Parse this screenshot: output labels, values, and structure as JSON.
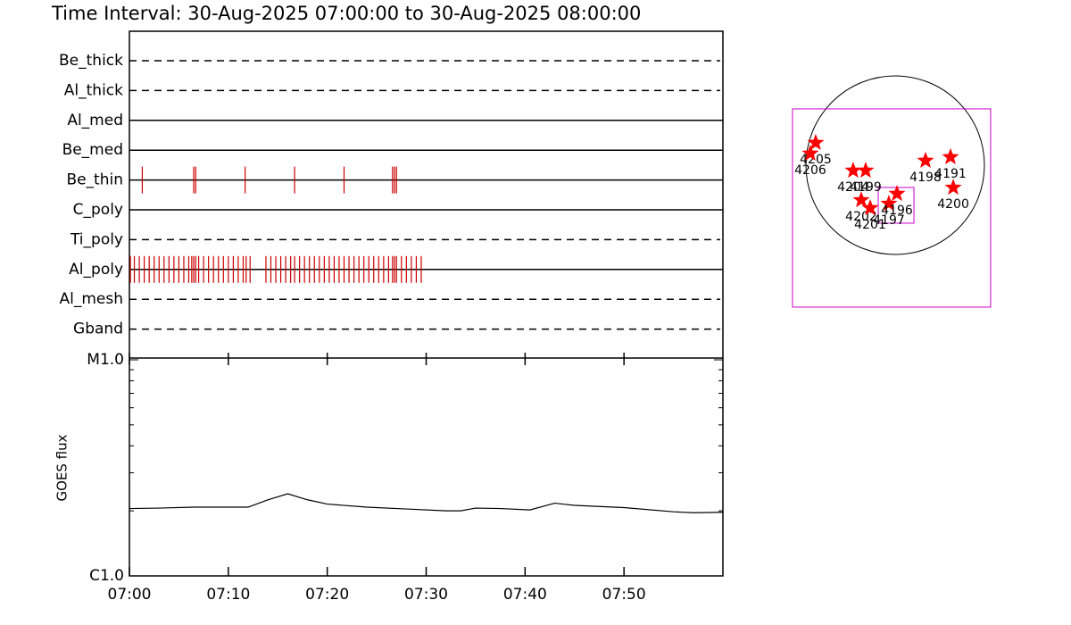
{
  "chart_data": [
    {
      "type": "timeline",
      "title": "Time Interval: 30-Aug-2025 07:00:00 to 30-Aug-2025 08:00:00",
      "categories": [
        "Be_thick",
        "Al_thick",
        "Al_med",
        "Be_med",
        "Be_thin",
        "C_poly",
        "Ti_poly",
        "Al_poly",
        "Al_mesh",
        "Gband"
      ],
      "line_styles": [
        "dashed",
        "dashed",
        "solid",
        "solid",
        "solid",
        "solid",
        "dashed",
        "solid",
        "dashed",
        "dashed"
      ],
      "events": [
        [],
        [],
        [],
        [],
        [
          1.3,
          6.5,
          6.7,
          11.7,
          16.7,
          21.7,
          26.6,
          26.8,
          27.0
        ],
        [],
        [],
        [
          0.1,
          0.5,
          1.0,
          1.5,
          2.0,
          2.5,
          3.0,
          3.5,
          4.0,
          4.5,
          5.0,
          5.5,
          6.0,
          6.3,
          6.5,
          6.7,
          7.0,
          7.5,
          8.0,
          8.5,
          9.0,
          9.5,
          10.0,
          10.5,
          11.0,
          11.5,
          11.8,
          12.2,
          13.8,
          14.3,
          14.8,
          15.3,
          15.8,
          16.3,
          16.7,
          17.2,
          17.7,
          18.2,
          18.7,
          19.2,
          19.7,
          20.2,
          20.7,
          21.2,
          21.7,
          22.2,
          22.7,
          23.2,
          23.7,
          24.2,
          24.7,
          25.2,
          25.7,
          26.2,
          26.6,
          26.8,
          27.0,
          27.5,
          28.0,
          28.5,
          29.0,
          29.5
        ],
        [],
        []
      ],
      "color": "#cc0000",
      "xlim": [
        0,
        60
      ]
    },
    {
      "type": "line",
      "ylabel": "GOES flux",
      "x": [
        0,
        3,
        6.5,
        12,
        14,
        16,
        18,
        20,
        24,
        28,
        32,
        33.5,
        35,
        37.5,
        40.5,
        43,
        45,
        50,
        55,
        57,
        60
      ],
      "values": [
        2.05e-06,
        2.06e-06,
        2.08e-06,
        2.08e-06,
        2.25e-06,
        2.4e-06,
        2.25e-06,
        2.15e-06,
        2.08e-06,
        2.04e-06,
        2e-06,
        2e-06,
        2.06e-06,
        2.05e-06,
        2.02e-06,
        2.17e-06,
        2.12e-06,
        2.07e-06,
        1.98e-06,
        1.96e-06,
        1.97e-06
      ],
      "log_scale": true,
      "xlim": [
        0,
        60
      ],
      "xticks": [
        {
          "value": 0,
          "label": "07:00"
        },
        {
          "value": 10,
          "label": "07:10"
        },
        {
          "value": 20,
          "label": "07:20"
        },
        {
          "value": 30,
          "label": "07:30"
        },
        {
          "value": 40,
          "label": "07:40"
        },
        {
          "value": 50,
          "label": "07:50"
        }
      ],
      "ylim": [
        1e-06,
        1e-05
      ],
      "yticks": [
        {
          "value": 1e-06,
          "label": "C1.0"
        },
        {
          "value": 1e-05,
          "label": "M1.0"
        }
      ],
      "yminorticks": [
        2e-06,
        3e-06,
        4e-06,
        5e-06,
        6e-06,
        7e-06,
        8e-06,
        9e-06
      ],
      "color": "#000000"
    },
    {
      "type": "scatter",
      "disk_radius": 950,
      "labels": [
        "4205",
        "4206",
        "4204",
        "4199",
        "4202",
        "4201",
        "4197",
        "4196",
        "4198",
        "4191",
        "4200"
      ],
      "x": [
        -846,
        -903,
        -447,
        -314,
        -361,
        -266,
        -67,
        19,
        323,
        589,
        618
      ],
      "y": [
        238,
        124,
        -57,
        -57,
        -371,
        -456,
        -409,
        -304,
        48,
        86,
        -238
      ],
      "color": "#ff0000",
      "boxes": [
        [
          -1093,
          599,
          1016,
          -1510
        ],
        [
          -180,
          -237,
          200,
          -617
        ]
      ],
      "box_color": "#cc00cc"
    }
  ]
}
